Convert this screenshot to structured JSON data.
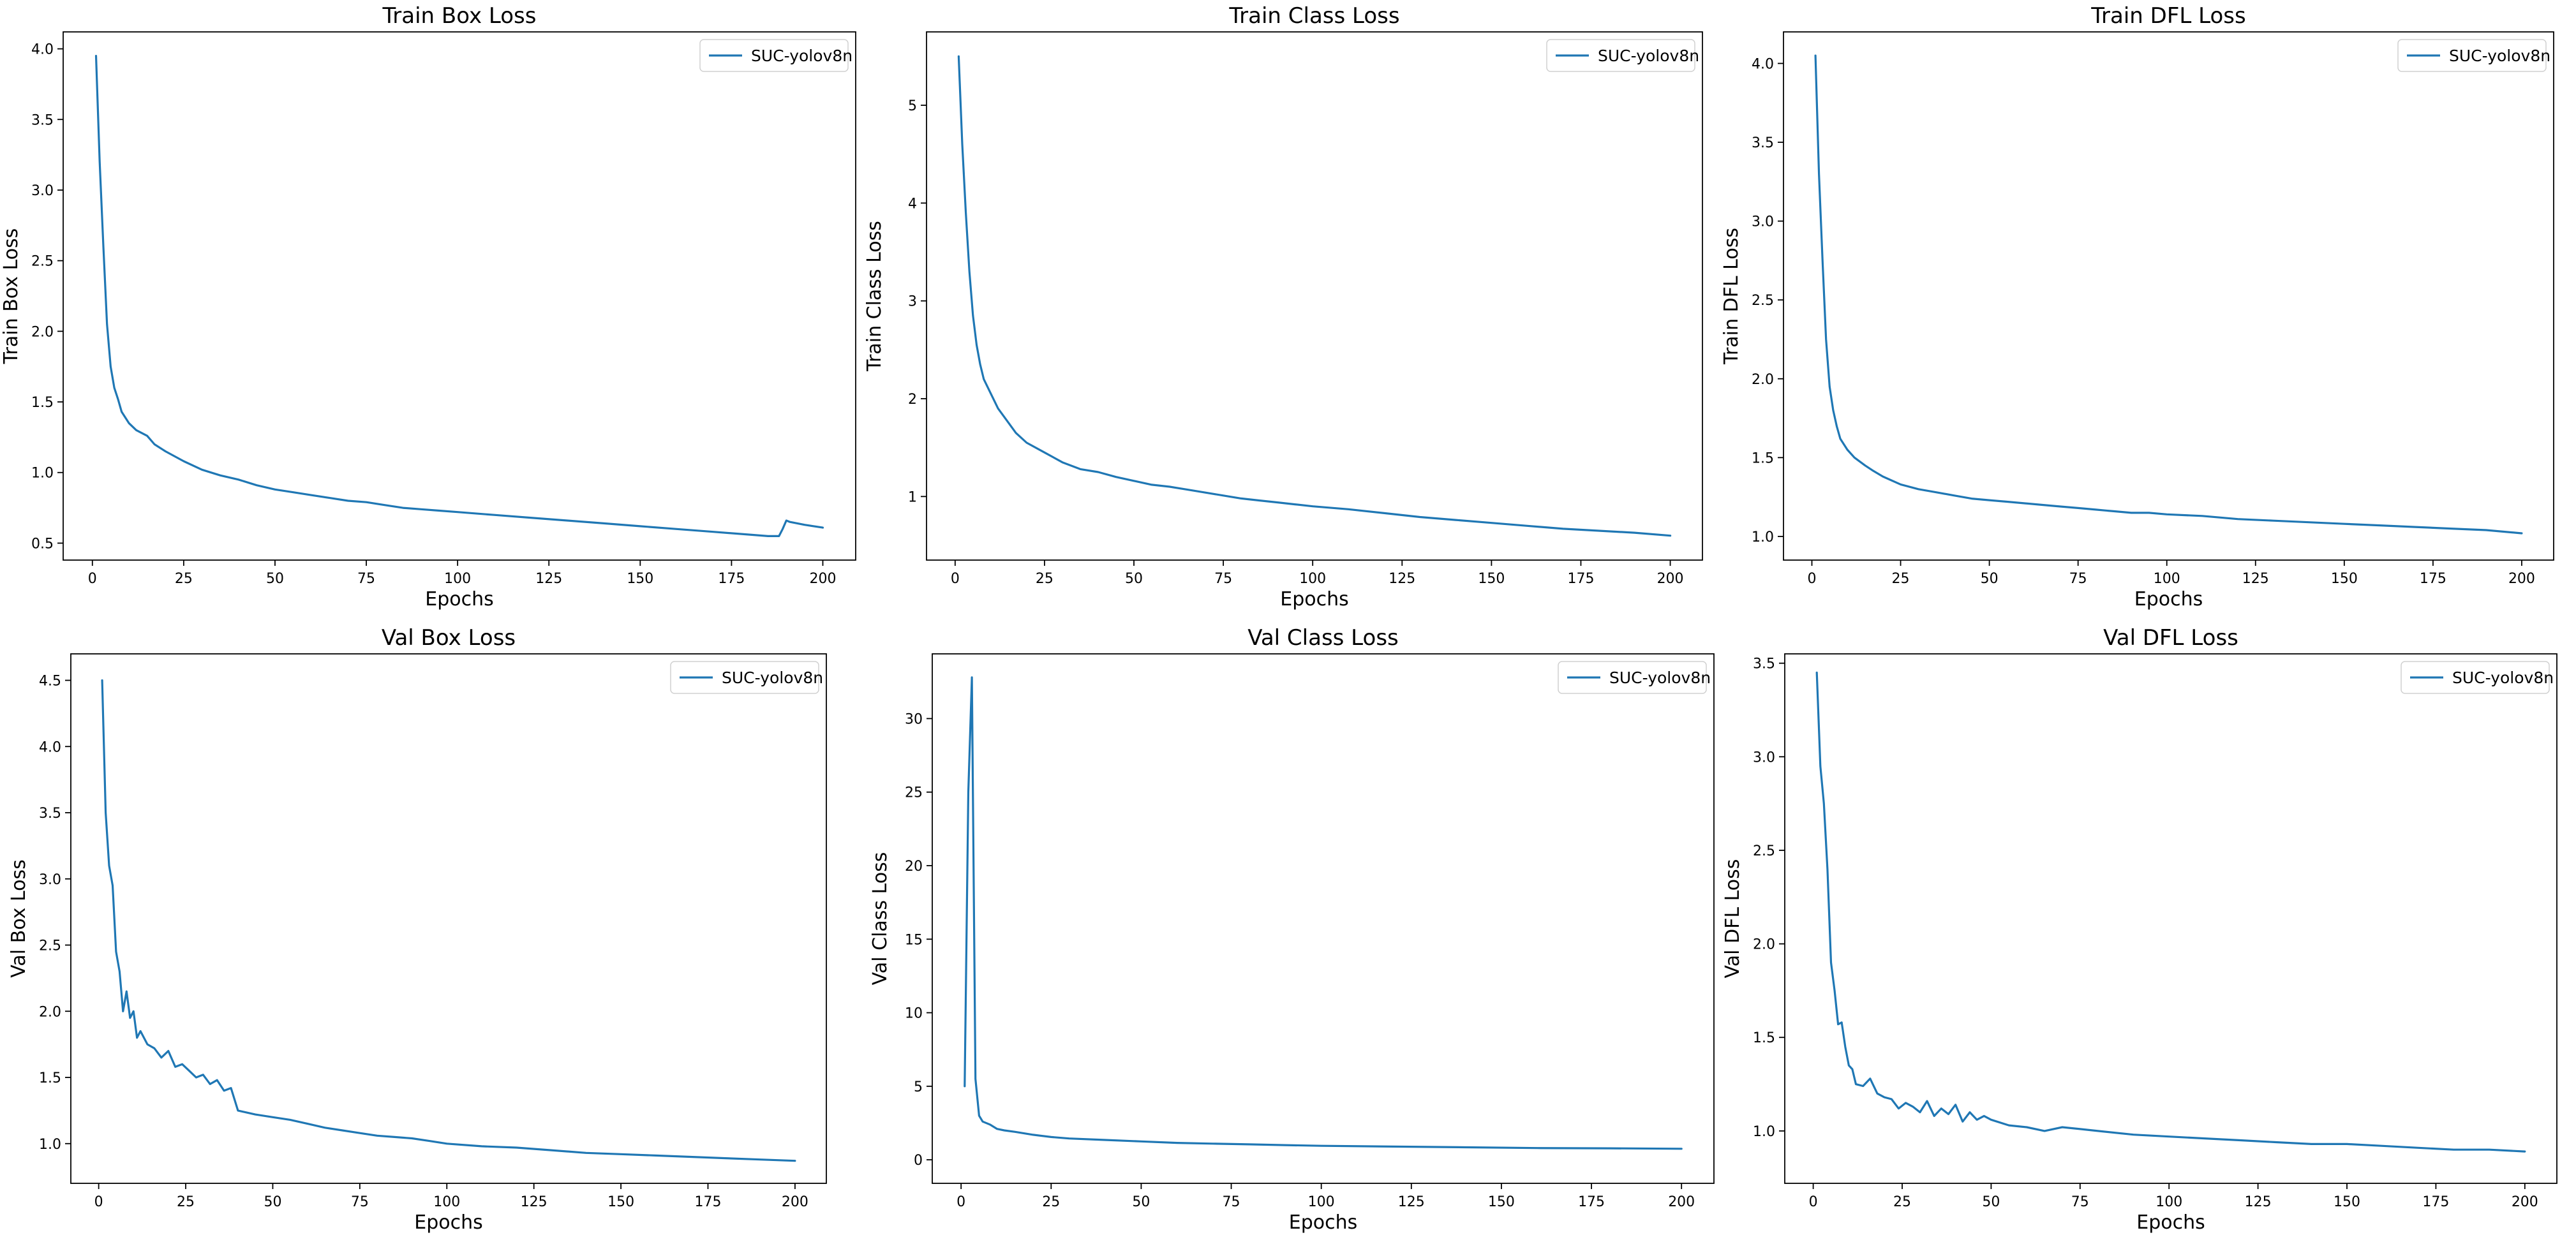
{
  "colors": {
    "series": "#1f77b4",
    "axis": "#000000",
    "legend_border": "#d0d0d0",
    "background": "#ffffff"
  },
  "chart_data": [
    {
      "type": "line",
      "title": "Train Box Loss",
      "xlabel": "Epochs",
      "ylabel": "Train Box Loss",
      "xlim": [
        -8,
        209
      ],
      "ylim": [
        0.38,
        4.12
      ],
      "xticks": [
        0,
        25,
        50,
        75,
        100,
        125,
        150,
        175,
        200
      ],
      "yticks": [
        0.5,
        1.0,
        1.5,
        2.0,
        2.5,
        3.0,
        3.5,
        4.0
      ],
      "xtick_labels": [
        "0",
        "25",
        "50",
        "75",
        "100",
        "125",
        "150",
        "175",
        "200"
      ],
      "ytick_labels": [
        "0.5",
        "1.0",
        "1.5",
        "2.0",
        "2.5",
        "3.0",
        "3.5",
        "4.0"
      ],
      "grid": false,
      "legend": "top-right",
      "series": [
        {
          "name": "SUC-yolov8n",
          "x": [
            1,
            2,
            3,
            4,
            5,
            6,
            7,
            8,
            10,
            12,
            15,
            17,
            20,
            25,
            30,
            35,
            40,
            45,
            50,
            55,
            60,
            65,
            70,
            75,
            80,
            85,
            90,
            95,
            100,
            110,
            120,
            130,
            140,
            150,
            160,
            170,
            180,
            185,
            188,
            189,
            190,
            191,
            195,
            200
          ],
          "y": [
            3.95,
            3.2,
            2.6,
            2.05,
            1.75,
            1.6,
            1.52,
            1.43,
            1.35,
            1.3,
            1.26,
            1.2,
            1.15,
            1.08,
            1.02,
            0.98,
            0.95,
            0.91,
            0.88,
            0.86,
            0.84,
            0.82,
            0.8,
            0.79,
            0.77,
            0.75,
            0.74,
            0.73,
            0.72,
            0.7,
            0.68,
            0.66,
            0.64,
            0.62,
            0.6,
            0.58,
            0.56,
            0.55,
            0.55,
            0.6,
            0.66,
            0.65,
            0.63,
            0.61
          ]
        }
      ]
    },
    {
      "type": "line",
      "title": "Train Class Loss",
      "xlabel": "Epochs",
      "ylabel": "Train Class Loss",
      "xlim": [
        -8,
        209
      ],
      "ylim": [
        0.35,
        5.75
      ],
      "xticks": [
        0,
        25,
        50,
        75,
        100,
        125,
        150,
        175,
        200
      ],
      "yticks": [
        1,
        2,
        3,
        4,
        5
      ],
      "xtick_labels": [
        "0",
        "25",
        "50",
        "75",
        "100",
        "125",
        "150",
        "175",
        "200"
      ],
      "ytick_labels": [
        "1",
        "2",
        "3",
        "4",
        "5"
      ],
      "grid": false,
      "legend": "top-right",
      "series": [
        {
          "name": "SUC-yolov8n",
          "x": [
            1,
            2,
            3,
            4,
            5,
            6,
            7,
            8,
            10,
            12,
            15,
            17,
            20,
            25,
            30,
            35,
            40,
            45,
            50,
            55,
            60,
            65,
            70,
            75,
            80,
            85,
            90,
            95,
            100,
            110,
            120,
            130,
            140,
            150,
            160,
            170,
            180,
            190,
            200
          ],
          "y": [
            5.5,
            4.6,
            3.9,
            3.3,
            2.85,
            2.55,
            2.35,
            2.2,
            2.05,
            1.9,
            1.75,
            1.65,
            1.55,
            1.45,
            1.35,
            1.28,
            1.25,
            1.2,
            1.16,
            1.12,
            1.1,
            1.07,
            1.04,
            1.01,
            0.98,
            0.96,
            0.94,
            0.92,
            0.9,
            0.87,
            0.83,
            0.79,
            0.76,
            0.73,
            0.7,
            0.67,
            0.65,
            0.63,
            0.6
          ]
        }
      ]
    },
    {
      "type": "line",
      "title": "Train DFL Loss",
      "xlabel": "Epochs",
      "ylabel": "Train DFL Loss",
      "xlim": [
        -8,
        209
      ],
      "ylim": [
        0.85,
        4.2
      ],
      "xticks": [
        0,
        25,
        50,
        75,
        100,
        125,
        150,
        175,
        200
      ],
      "yticks": [
        1.0,
        1.5,
        2.0,
        2.5,
        3.0,
        3.5,
        4.0
      ],
      "xtick_labels": [
        "0",
        "25",
        "50",
        "75",
        "100",
        "125",
        "150",
        "175",
        "200"
      ],
      "ytick_labels": [
        "1.0",
        "1.5",
        "2.0",
        "2.5",
        "3.0",
        "3.5",
        "4.0"
      ],
      "grid": false,
      "legend": "top-right",
      "series": [
        {
          "name": "SUC-yolov8n",
          "x": [
            1,
            2,
            3,
            4,
            5,
            6,
            7,
            8,
            10,
            12,
            15,
            17,
            20,
            25,
            30,
            35,
            40,
            45,
            50,
            55,
            60,
            65,
            70,
            75,
            80,
            85,
            90,
            95,
            100,
            110,
            120,
            130,
            140,
            150,
            160,
            170,
            180,
            190,
            200
          ],
          "y": [
            4.05,
            3.3,
            2.75,
            2.25,
            1.95,
            1.8,
            1.7,
            1.62,
            1.55,
            1.5,
            1.45,
            1.42,
            1.38,
            1.33,
            1.3,
            1.28,
            1.26,
            1.24,
            1.23,
            1.22,
            1.21,
            1.2,
            1.19,
            1.18,
            1.17,
            1.16,
            1.15,
            1.15,
            1.14,
            1.13,
            1.11,
            1.1,
            1.09,
            1.08,
            1.07,
            1.06,
            1.05,
            1.04,
            1.02
          ]
        }
      ]
    },
    {
      "type": "line",
      "title": "Val Box Loss",
      "xlabel": "Epochs",
      "ylabel": "Val Box Loss",
      "xlim": [
        -8,
        209
      ],
      "ylim": [
        0.7,
        4.7
      ],
      "xticks": [
        0,
        25,
        50,
        75,
        100,
        125,
        150,
        175,
        200
      ],
      "yticks": [
        1.0,
        1.5,
        2.0,
        2.5,
        3.0,
        3.5,
        4.0,
        4.5
      ],
      "xtick_labels": [
        "0",
        "25",
        "50",
        "75",
        "100",
        "125",
        "150",
        "175",
        "200"
      ],
      "ytick_labels": [
        "1.0",
        "1.5",
        "2.0",
        "2.5",
        "3.0",
        "3.5",
        "4.0",
        "4.5"
      ],
      "grid": false,
      "legend": "top-right",
      "series": [
        {
          "name": "SUC-yolov8n",
          "x": [
            1,
            2,
            3,
            4,
            5,
            6,
            7,
            8,
            9,
            10,
            11,
            12,
            14,
            16,
            18,
            20,
            22,
            24,
            26,
            28,
            30,
            32,
            34,
            36,
            38,
            40,
            45,
            50,
            55,
            60,
            65,
            70,
            75,
            80,
            85,
            90,
            95,
            100,
            110,
            120,
            130,
            140,
            150,
            160,
            170,
            180,
            190,
            200
          ],
          "y": [
            4.5,
            3.5,
            3.1,
            2.95,
            2.45,
            2.3,
            2.0,
            2.15,
            1.95,
            2.0,
            1.8,
            1.85,
            1.75,
            1.72,
            1.65,
            1.7,
            1.58,
            1.6,
            1.55,
            1.5,
            1.52,
            1.45,
            1.48,
            1.4,
            1.42,
            1.25,
            1.22,
            1.2,
            1.18,
            1.15,
            1.12,
            1.1,
            1.08,
            1.06,
            1.05,
            1.04,
            1.02,
            1.0,
            0.98,
            0.97,
            0.95,
            0.93,
            0.92,
            0.91,
            0.9,
            0.89,
            0.88,
            0.87
          ]
        }
      ]
    },
    {
      "type": "line",
      "title": "Val Class Loss",
      "xlabel": "Epochs",
      "ylabel": "Val Class Loss",
      "xlim": [
        -8,
        209
      ],
      "ylim": [
        -1.6,
        34.4
      ],
      "xticks": [
        0,
        25,
        50,
        75,
        100,
        125,
        150,
        175,
        200
      ],
      "yticks": [
        0,
        5,
        10,
        15,
        20,
        25,
        30
      ],
      "xtick_labels": [
        "0",
        "25",
        "50",
        "75",
        "100",
        "125",
        "150",
        "175",
        "200"
      ],
      "ytick_labels": [
        "0",
        "5",
        "10",
        "15",
        "20",
        "25",
        "30"
      ],
      "grid": false,
      "legend": "top-right",
      "series": [
        {
          "name": "SUC-yolov8n",
          "x": [
            1,
            2,
            3,
            4,
            5,
            6,
            8,
            10,
            12,
            15,
            20,
            25,
            30,
            40,
            50,
            60,
            70,
            80,
            90,
            100,
            120,
            140,
            160,
            180,
            200
          ],
          "y": [
            5.0,
            25.0,
            32.8,
            5.5,
            3.0,
            2.6,
            2.4,
            2.1,
            2.0,
            1.9,
            1.7,
            1.55,
            1.45,
            1.35,
            1.25,
            1.15,
            1.1,
            1.05,
            1.0,
            0.95,
            0.9,
            0.85,
            0.8,
            0.78,
            0.75
          ]
        }
      ]
    },
    {
      "type": "line",
      "title": "Val DFL Loss",
      "xlabel": "Epochs",
      "ylabel": "Val DFL Loss",
      "xlim": [
        -8,
        209
      ],
      "ylim": [
        0.72,
        3.55
      ],
      "xticks": [
        0,
        25,
        50,
        75,
        100,
        125,
        150,
        175,
        200
      ],
      "yticks": [
        1.0,
        1.5,
        2.0,
        2.5,
        3.0,
        3.5
      ],
      "xtick_labels": [
        "0",
        "25",
        "50",
        "75",
        "100",
        "125",
        "150",
        "175",
        "200"
      ],
      "ytick_labels": [
        "1.0",
        "1.5",
        "2.0",
        "2.5",
        "3.0",
        "3.5"
      ],
      "grid": false,
      "legend": "top-right",
      "series": [
        {
          "name": "SUC-yolov8n",
          "x": [
            1,
            2,
            3,
            4,
            5,
            6,
            7,
            8,
            9,
            10,
            11,
            12,
            14,
            16,
            18,
            20,
            22,
            24,
            26,
            28,
            30,
            32,
            34,
            36,
            38,
            40,
            42,
            44,
            46,
            48,
            50,
            55,
            60,
            65,
            70,
            75,
            80,
            90,
            100,
            110,
            120,
            130,
            140,
            150,
            160,
            170,
            180,
            190,
            200
          ],
          "y": [
            3.45,
            2.95,
            2.75,
            2.4,
            1.9,
            1.75,
            1.57,
            1.58,
            1.45,
            1.35,
            1.33,
            1.25,
            1.24,
            1.28,
            1.2,
            1.18,
            1.17,
            1.12,
            1.15,
            1.13,
            1.1,
            1.16,
            1.08,
            1.12,
            1.09,
            1.14,
            1.05,
            1.1,
            1.06,
            1.08,
            1.06,
            1.03,
            1.02,
            1.0,
            1.02,
            1.01,
            1.0,
            0.98,
            0.97,
            0.96,
            0.95,
            0.94,
            0.93,
            0.93,
            0.92,
            0.91,
            0.9,
            0.9,
            0.89
          ]
        }
      ]
    }
  ]
}
